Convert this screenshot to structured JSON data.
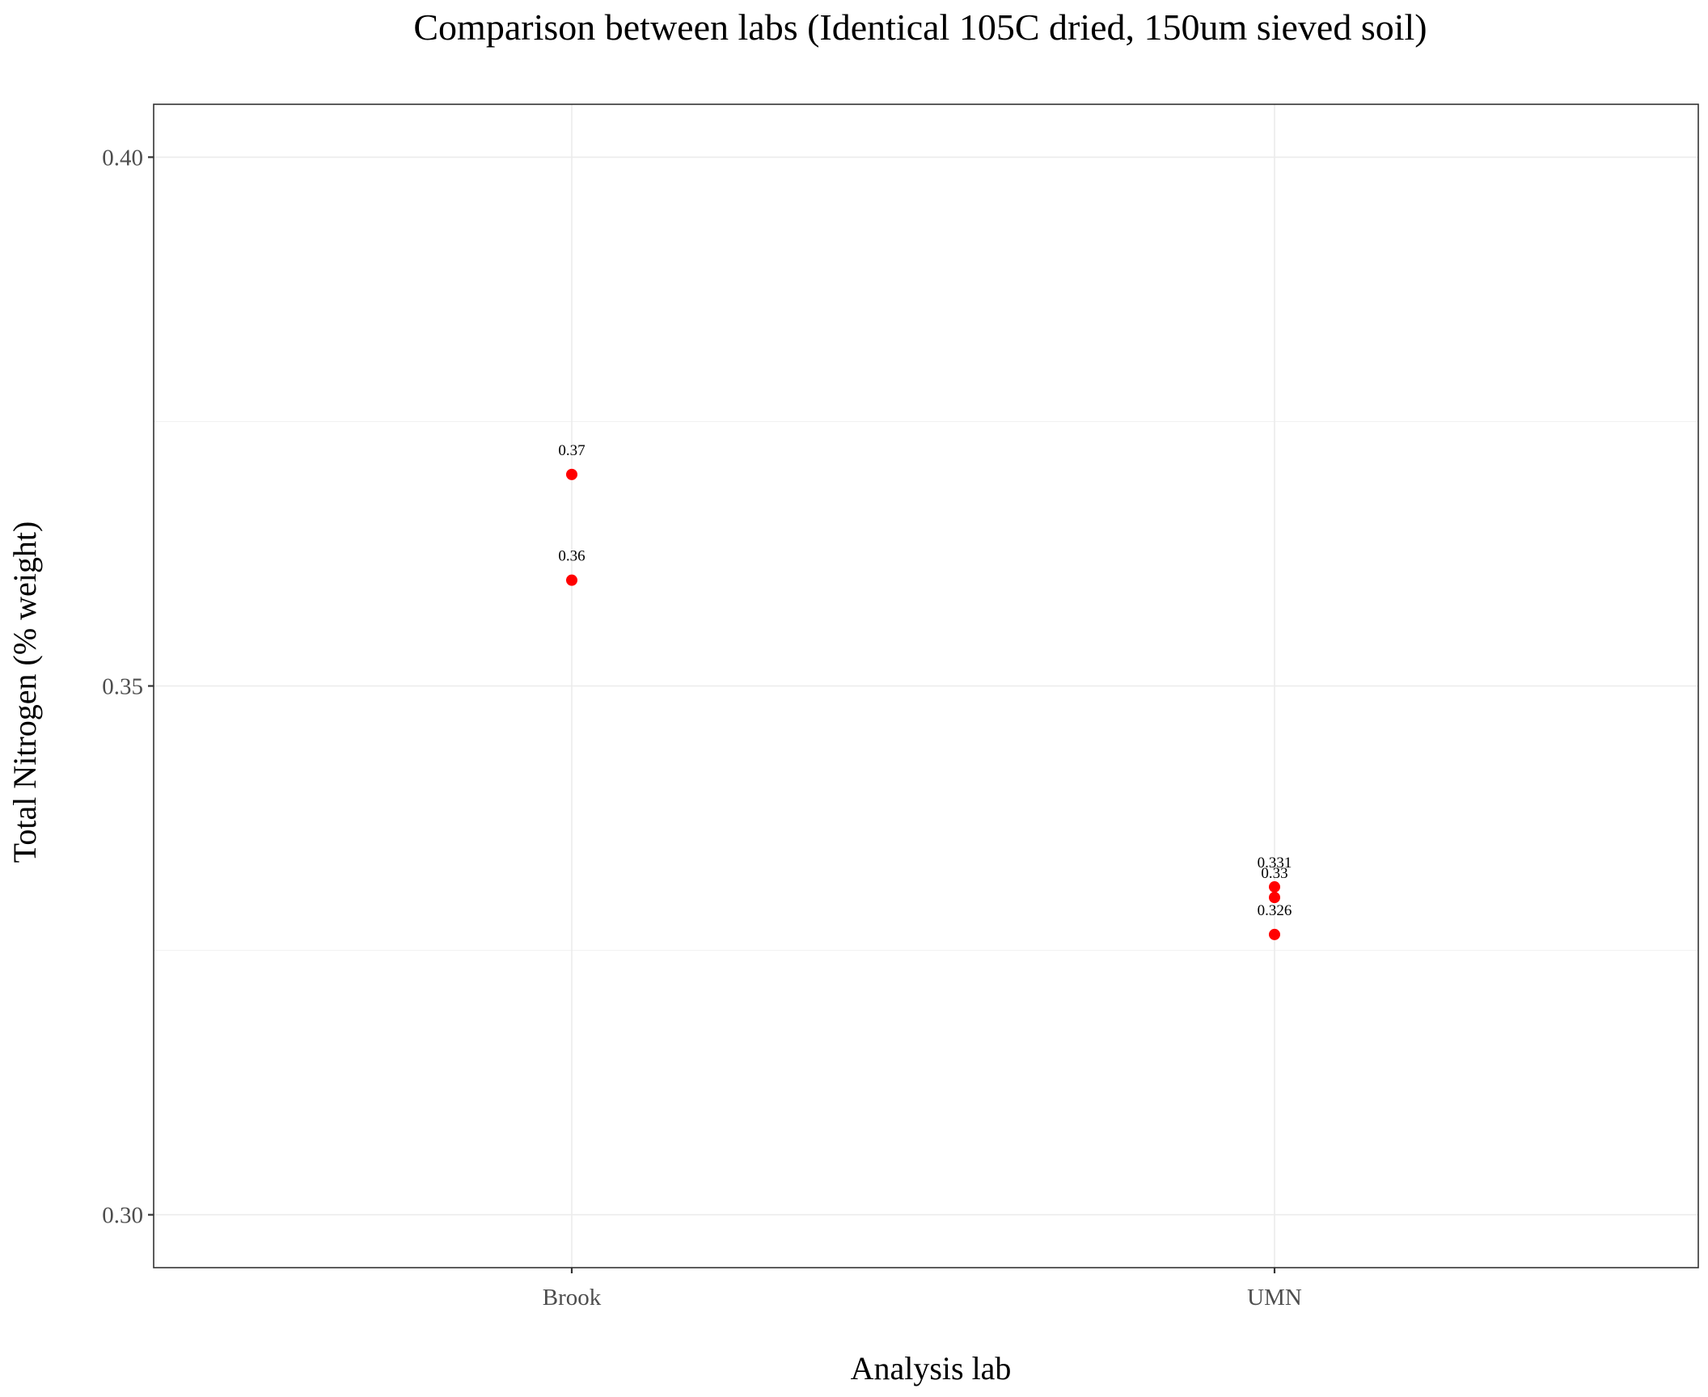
{
  "chart_data": {
    "type": "scatter",
    "title": "Comparison between labs (Identical 105C dried, 150um sieved soil)",
    "xlabel": "Analysis lab",
    "ylabel": "Total Nitrogen (% weight)",
    "categories": [
      "Brook",
      "UMN"
    ],
    "ylim": [
      0.295,
      0.405
    ],
    "y_ticks": [
      0.3,
      0.35,
      0.4
    ],
    "y_tick_labels": [
      "0.30",
      "0.35",
      "0.40"
    ],
    "y_minor_ticks": [
      0.325,
      0.375
    ],
    "grid": true,
    "legend": "none",
    "point_color": "#ff0000",
    "points": [
      {
        "category": "Brook",
        "y": 0.37,
        "label": "0.37"
      },
      {
        "category": "Brook",
        "y": 0.36,
        "label": "0.36"
      },
      {
        "category": "UMN",
        "y": 0.331,
        "label": "0.331"
      },
      {
        "category": "UMN",
        "y": 0.33,
        "label": "0.33"
      },
      {
        "category": "UMN",
        "y": 0.3265,
        "label": "0.326"
      }
    ]
  }
}
